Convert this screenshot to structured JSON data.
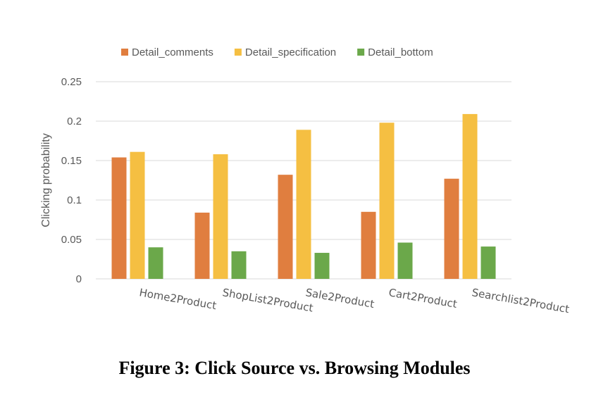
{
  "figure_caption": "Figure 3: Click Source vs. Browsing Modules",
  "chart_data": {
    "type": "bar",
    "categories": [
      "Home2Product",
      "ShopList2Product",
      "Sale2Product",
      "Cart2Product",
      "Searchlist2Product"
    ],
    "series": [
      {
        "name": "Detail_comments",
        "color": "#E07E3F",
        "values": [
          0.154,
          0.084,
          0.132,
          0.085,
          0.127
        ]
      },
      {
        "name": "Detail_specification",
        "color": "#F5BF42",
        "values": [
          0.161,
          0.158,
          0.189,
          0.198,
          0.209
        ]
      },
      {
        "name": "Detail_bottom",
        "color": "#6BA84A",
        "values": [
          0.04,
          0.035,
          0.033,
          0.046,
          0.041
        ]
      }
    ],
    "ylabel": "Clicking probability",
    "xlabel": "",
    "ylim": [
      0,
      0.25
    ],
    "yticks": [
      "0",
      "0.05",
      "0.1",
      "0.15",
      "0.2",
      "0.25"
    ],
    "grid": true,
    "legend_position": "top"
  }
}
